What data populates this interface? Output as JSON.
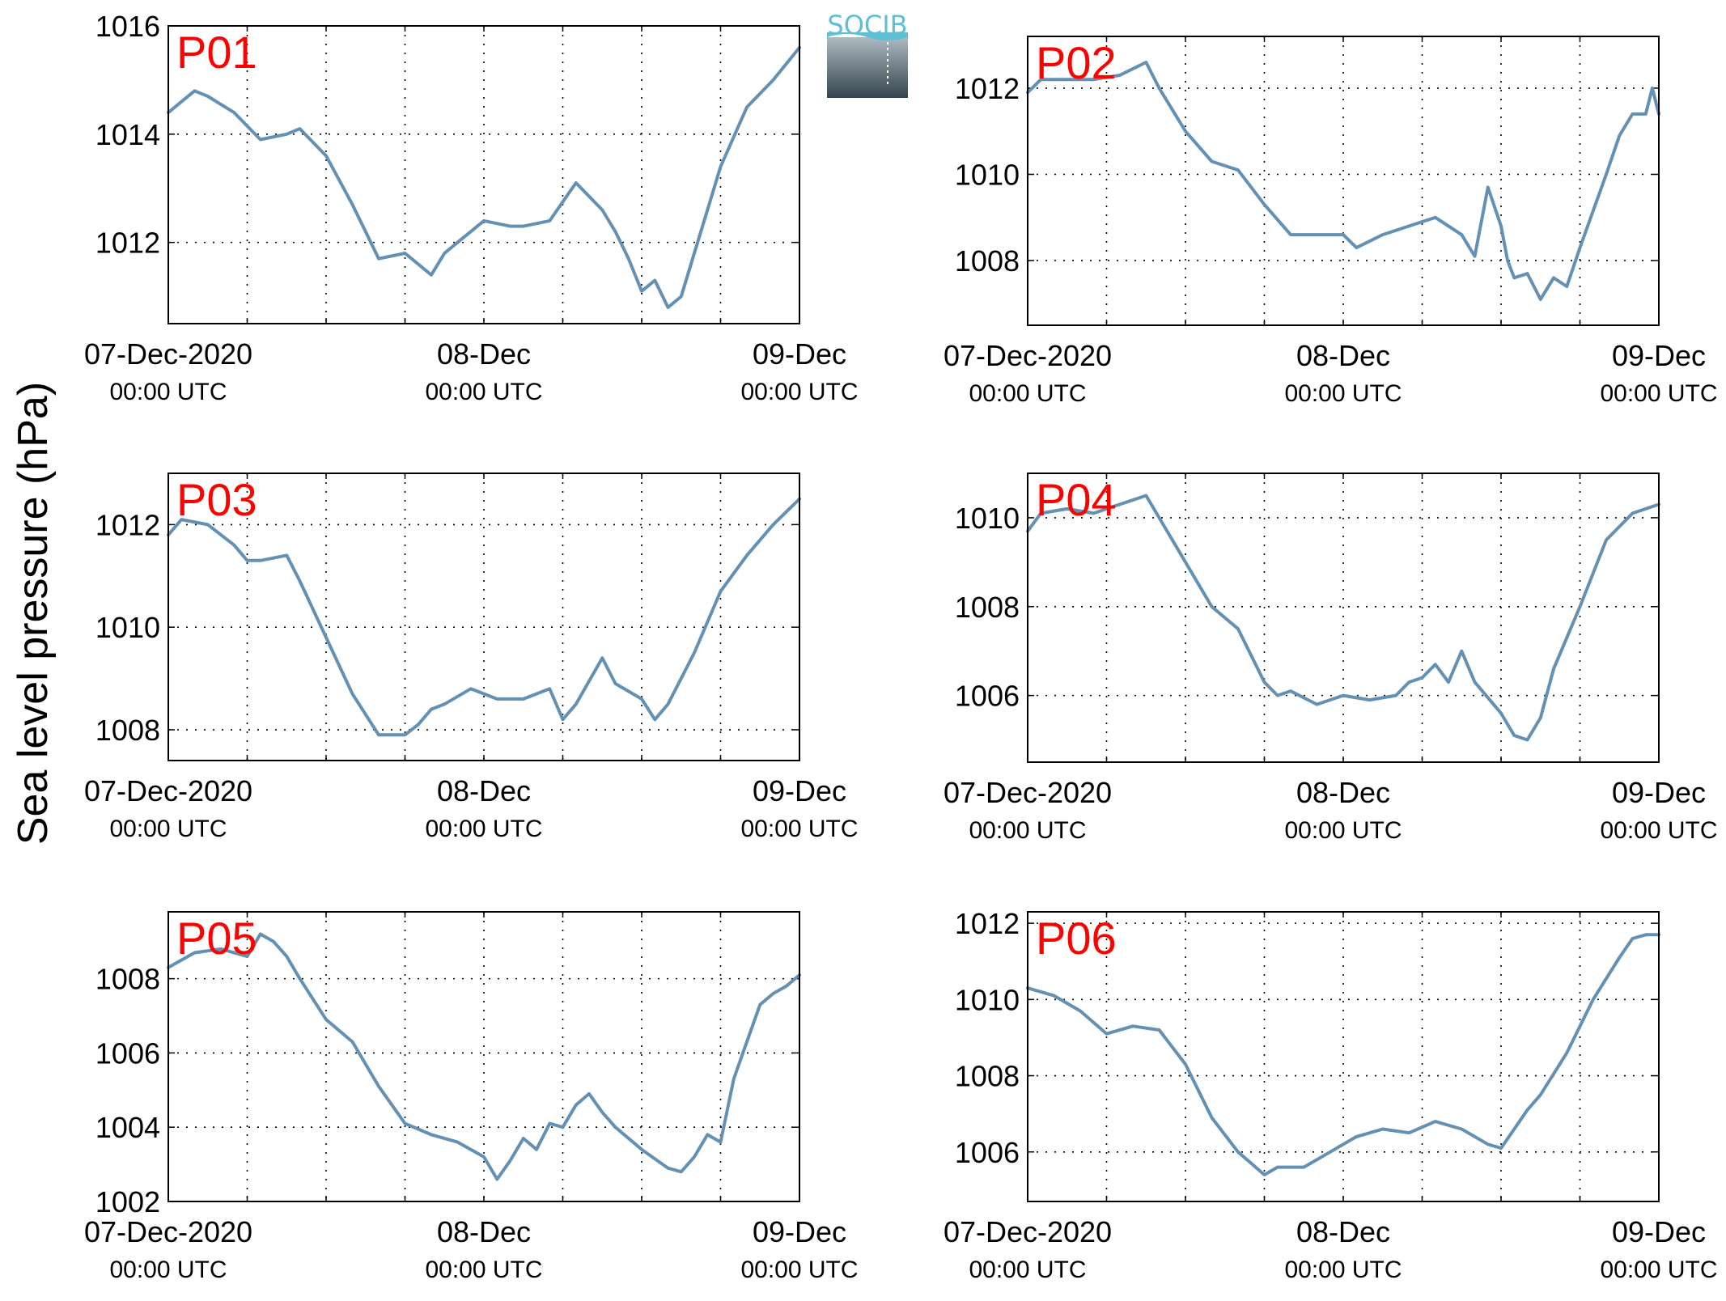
{
  "figure": {
    "ylabel": "Sea level pressure (hPa)",
    "logo_text": "SOCIB"
  },
  "colors": {
    "line": "#6490b4",
    "panel_label": "#ff0000",
    "grid": "#000000"
  },
  "chart_data": [
    {
      "type": "line",
      "title": "P01",
      "x_ticks": [
        {
          "date": "07-Dec-2020",
          "time": "00:00 UTC"
        },
        {
          "date": "08-Dec",
          "time": "00:00 UTC"
        },
        {
          "date": "09-Dec",
          "time": "00:00 UTC"
        }
      ],
      "ylim": [
        1010.5,
        1016
      ],
      "yticks": [
        1012,
        1014,
        1016
      ],
      "grid": true,
      "x": [
        0,
        2,
        3,
        5,
        7,
        9,
        10,
        12,
        14,
        15,
        16,
        18,
        20,
        21,
        22,
        24,
        26,
        27,
        29,
        31,
        33,
        34,
        35,
        36,
        37,
        38,
        39,
        40,
        41,
        42,
        44,
        46,
        48
      ],
      "y": [
        1014.4,
        1014.8,
        1014.7,
        1014.4,
        1013.9,
        1014.0,
        1014.1,
        1013.6,
        1012.7,
        1012.2,
        1011.7,
        1011.8,
        1011.4,
        1011.8,
        1012.0,
        1012.4,
        1012.3,
        1012.3,
        1012.4,
        1013.1,
        1012.6,
        1012.2,
        1011.7,
        1011.1,
        1011.3,
        1010.8,
        1011.0,
        1011.8,
        1012.6,
        1013.4,
        1014.5,
        1015.0,
        1015.6
      ]
    },
    {
      "type": "line",
      "title": "P02",
      "x_ticks": [
        {
          "date": "07-Dec-2020",
          "time": "00:00 UTC"
        },
        {
          "date": "08-Dec",
          "time": "00:00 UTC"
        },
        {
          "date": "09-Dec",
          "time": "00:00 UTC"
        }
      ],
      "ylim": [
        1006.5,
        1013.2
      ],
      "yticks": [
        1008,
        1010,
        1012
      ],
      "grid": true,
      "x": [
        0,
        1,
        3,
        5,
        7,
        9,
        10,
        12,
        14,
        16,
        18,
        20,
        22,
        24,
        25,
        27,
        29,
        31,
        33,
        34,
        35,
        36,
        36.5,
        37,
        38,
        39,
        40,
        41,
        42,
        44,
        45,
        46,
        47,
        47.5,
        48
      ],
      "y": [
        1011.9,
        1012.2,
        1012.2,
        1012.2,
        1012.3,
        1012.6,
        1012.0,
        1011.0,
        1010.3,
        1010.1,
        1009.3,
        1008.6,
        1008.6,
        1008.6,
        1008.3,
        1008.6,
        1008.8,
        1009.0,
        1008.6,
        1008.1,
        1009.7,
        1008.8,
        1008.0,
        1007.6,
        1007.7,
        1007.1,
        1007.6,
        1007.4,
        1008.3,
        1010.0,
        1010.9,
        1011.4,
        1011.4,
        1012.0,
        1011.4
      ]
    },
    {
      "type": "line",
      "title": "P03",
      "x_ticks": [
        {
          "date": "07-Dec-2020",
          "time": "00:00 UTC"
        },
        {
          "date": "08-Dec",
          "time": "00:00 UTC"
        },
        {
          "date": "09-Dec",
          "time": "00:00 UTC"
        }
      ],
      "ylim": [
        1007.4,
        1013
      ],
      "yticks": [
        1008,
        1010,
        1012
      ],
      "grid": true,
      "x": [
        0,
        1,
        3,
        5,
        6,
        7,
        9,
        10,
        12,
        14,
        16,
        18,
        19,
        20,
        21,
        23,
        25,
        27,
        29,
        30,
        31,
        33,
        34,
        36,
        37,
        38,
        40,
        42,
        44,
        46,
        48
      ],
      "y": [
        1011.8,
        1012.1,
        1012.0,
        1011.6,
        1011.3,
        1011.3,
        1011.4,
        1010.9,
        1009.8,
        1008.7,
        1007.9,
        1007.9,
        1008.1,
        1008.4,
        1008.5,
        1008.8,
        1008.6,
        1008.6,
        1008.8,
        1008.2,
        1008.5,
        1009.4,
        1008.9,
        1008.6,
        1008.2,
        1008.5,
        1009.5,
        1010.7,
        1011.4,
        1012.0,
        1012.5
      ]
    },
    {
      "type": "line",
      "title": "P04",
      "x_ticks": [
        {
          "date": "07-Dec-2020",
          "time": "00:00 UTC"
        },
        {
          "date": "08-Dec",
          "time": "00:00 UTC"
        },
        {
          "date": "09-Dec",
          "time": "00:00 UTC"
        }
      ],
      "ylim": [
        1004.5,
        1011
      ],
      "yticks": [
        1006,
        1008,
        1010
      ],
      "grid": true,
      "x": [
        0,
        1,
        3,
        5,
        7,
        9,
        10,
        12,
        14,
        16,
        18,
        19,
        20,
        22,
        24,
        26,
        28,
        29,
        30,
        31,
        32,
        33,
        34,
        36,
        37,
        38,
        39,
        40,
        42,
        44,
        46,
        48
      ],
      "y": [
        1009.7,
        1010.1,
        1010.2,
        1010.1,
        1010.3,
        1010.5,
        1010.0,
        1009.0,
        1008.0,
        1007.5,
        1006.3,
        1006.0,
        1006.1,
        1005.8,
        1006.0,
        1005.9,
        1006.0,
        1006.3,
        1006.4,
        1006.7,
        1006.3,
        1007.0,
        1006.3,
        1005.6,
        1005.1,
        1005.0,
        1005.5,
        1006.6,
        1008.0,
        1009.5,
        1010.1,
        1010.3
      ]
    },
    {
      "type": "line",
      "title": "P05",
      "x_ticks": [
        {
          "date": "07-Dec-2020",
          "time": "00:00 UTC"
        },
        {
          "date": "08-Dec",
          "time": "00:00 UTC"
        },
        {
          "date": "09-Dec",
          "time": "00:00 UTC"
        }
      ],
      "ylim": [
        1002,
        1009.8
      ],
      "yticks": [
        1002,
        1004,
        1006,
        1008
      ],
      "grid": true,
      "x": [
        0,
        2,
        4,
        6,
        7,
        8,
        9,
        10,
        12,
        14,
        16,
        18,
        20,
        22,
        24,
        25,
        26,
        27,
        28,
        29,
        30,
        31,
        32,
        33,
        34,
        36,
        38,
        39,
        40,
        41,
        42,
        43,
        44,
        45,
        46,
        47,
        48
      ],
      "y": [
        1008.3,
        1008.7,
        1008.8,
        1008.6,
        1009.2,
        1009.0,
        1008.6,
        1008.0,
        1006.9,
        1006.3,
        1005.1,
        1004.1,
        1003.8,
        1003.6,
        1003.2,
        1002.6,
        1003.1,
        1003.7,
        1003.4,
        1004.1,
        1004.0,
        1004.6,
        1004.9,
        1004.4,
        1004.0,
        1003.4,
        1002.9,
        1002.8,
        1003.2,
        1003.8,
        1003.6,
        1005.3,
        1006.3,
        1007.3,
        1007.6,
        1007.8,
        1008.1
      ]
    },
    {
      "type": "line",
      "title": "P06",
      "x_ticks": [
        {
          "date": "07-Dec-2020",
          "time": "00:00 UTC"
        },
        {
          "date": "08-Dec",
          "time": "00:00 UTC"
        },
        {
          "date": "09-Dec",
          "time": "00:00 UTC"
        }
      ],
      "ylim": [
        1004.7,
        1012.3
      ],
      "yticks": [
        1006,
        1008,
        1010,
        1012
      ],
      "grid": true,
      "x": [
        0,
        2,
        4,
        6,
        8,
        10,
        12,
        14,
        16,
        17,
        18,
        19,
        21,
        23,
        25,
        27,
        29,
        31,
        33,
        35,
        36,
        37,
        38,
        39,
        41,
        43,
        45,
        46,
        47,
        48
      ],
      "y": [
        1010.3,
        1010.1,
        1009.7,
        1009.1,
        1009.3,
        1009.2,
        1008.3,
        1006.9,
        1006.0,
        1005.7,
        1005.4,
        1005.6,
        1005.6,
        1006.0,
        1006.4,
        1006.6,
        1006.5,
        1006.8,
        1006.6,
        1006.2,
        1006.1,
        1006.6,
        1007.1,
        1007.5,
        1008.6,
        1010.0,
        1011.1,
        1011.6,
        1011.7,
        1011.7
      ]
    }
  ]
}
